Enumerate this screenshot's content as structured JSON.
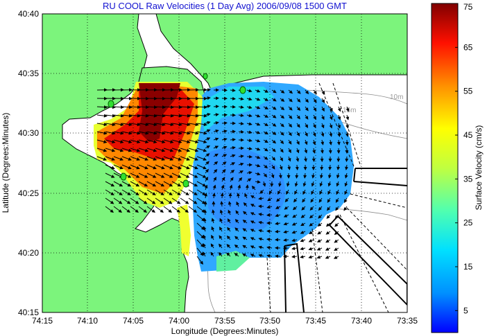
{
  "chart_data": {
    "type": "vector-field map",
    "title": "RU COOL Raw Velocities (1 Day Avg) 2006/09/08 1500 GMT",
    "xlabel": "Longitude (Degrees:Minutes)",
    "ylabel": "Latitude (Degrees:Minutes)",
    "xticks": [
      "74:15",
      "74:10",
      "74:05",
      "74:00",
      "73:55",
      "73:50",
      "73:45",
      "73:40",
      "73:35"
    ],
    "yticks": [
      "40:40",
      "40:35",
      "40:30",
      "40:25",
      "40:20",
      "40:15"
    ],
    "grid": true,
    "colorbar": {
      "label": "Surface Velocity (cm/s)",
      "ticks": [
        75,
        65,
        55,
        45,
        35,
        25,
        15,
        5
      ],
      "range": [
        0,
        75
      ],
      "colors": [
        "#0000ff",
        "#0090ff",
        "#00e0ff",
        "#50ffb0",
        "#c0ff40",
        "#ffff00",
        "#ff9000",
        "#ff1000",
        "#800000"
      ]
    },
    "depth_labels": [
      "10m",
      "15m"
    ],
    "land_color": "#7cf47c",
    "hf_radar_sites": 5
  }
}
